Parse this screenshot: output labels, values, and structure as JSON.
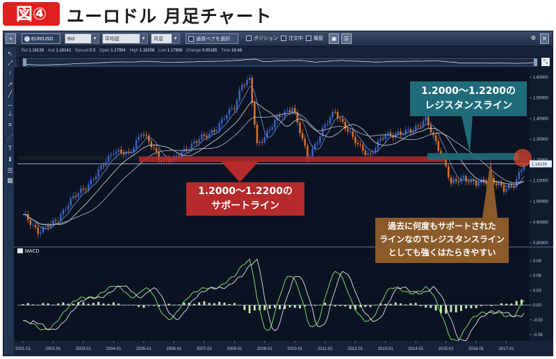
{
  "header": {
    "badge": "図④",
    "title": "ユーロドル 月足チャート"
  },
  "toolbar": {
    "pair": "EUR/USD",
    "price_type": "Bid",
    "chart_type": "平均足",
    "timeframe": "月足",
    "select_pair_button": "通貨ペアを選択",
    "position_label": "ポジション",
    "order_label": "注文中",
    "history_label": "履歴"
  },
  "infobar": {
    "bid_label": "Bid",
    "bid": "1.18139",
    "ask_label": "Ask",
    "ask": "1.18142",
    "spread_label": "Spread",
    "spread": "0.3",
    "open_label": "Open",
    "open": "1.17954",
    "high_label": "High",
    "high": "1.18258",
    "low_label": "Low",
    "low": "1.17908",
    "change_label": "Change",
    "change": "0.00185",
    "time_label": "Time",
    "time": "16:48"
  },
  "macd_label": "MACD",
  "current_price_tag": "1.18139",
  "callouts": {
    "resistance": [
      "1.2000〜1.2200の",
      "レジスタンスライン"
    ],
    "support": [
      "1.2000〜1.2200の",
      "サポートライン"
    ],
    "note": [
      "過去に何度もサポートされた",
      "ラインなので",
      "レジスタンスライン",
      "としても強くはたらきやすい"
    ]
  },
  "colors": {
    "background": "#0b1322",
    "bull": "#3a63c9",
    "bear": "#d9732f",
    "resistance_box": "#1f6b7a",
    "support_box": "#b52a2a",
    "note_box": "#8b5a2b",
    "macd_hist": "#c9efb4"
  },
  "chart_data": [
    {
      "type": "candlestick",
      "title": "",
      "x_tick_labels": [
        "2001-01",
        "2002-01",
        "2003-01",
        "2004-01",
        "2005-01",
        "2006-01",
        "2007-01",
        "2008-01",
        "2009-01",
        "2010-01",
        "2011-01",
        "2012-01",
        "2013-01",
        "2014-01",
        "2015-01",
        "2016-01",
        "2017-01"
      ],
      "y_tick_labels": [
        "1.60000",
        "1.50000",
        "1.40000",
        "1.30000",
        "1.20000",
        "1.10000",
        "1.00000",
        "0.90000",
        "0.80000"
      ],
      "ylim": [
        0.78,
        1.64
      ],
      "highlight_band": [
        1.2,
        1.22
      ],
      "monthly_close_approx": {
        "x": [
          "2001-01",
          "2001-07",
          "2002-01",
          "2002-07",
          "2003-01",
          "2003-07",
          "2004-01",
          "2004-07",
          "2004-12",
          "2005-07",
          "2006-01",
          "2006-07",
          "2007-01",
          "2007-07",
          "2008-01",
          "2008-04",
          "2008-07",
          "2008-10",
          "2009-01",
          "2009-07",
          "2009-12",
          "2010-06",
          "2010-11",
          "2011-05",
          "2011-12",
          "2012-07",
          "2013-01",
          "2013-07",
          "2014-05",
          "2014-12",
          "2015-03",
          "2015-08",
          "2016-01",
          "2016-07",
          "2016-12",
          "2017-04",
          "2017-08"
        ],
        "y": [
          0.93,
          0.86,
          0.89,
          0.99,
          1.06,
          1.14,
          1.25,
          1.22,
          1.34,
          1.21,
          1.2,
          1.27,
          1.31,
          1.37,
          1.46,
          1.57,
          1.58,
          1.27,
          1.32,
          1.41,
          1.46,
          1.21,
          1.32,
          1.44,
          1.3,
          1.22,
          1.33,
          1.32,
          1.39,
          1.21,
          1.08,
          1.12,
          1.08,
          1.11,
          1.05,
          1.09,
          1.18
        ]
      },
      "series": [
        {
          "name": "moving average (fast)",
          "color": "#7f9fe0"
        },
        {
          "name": "moving average (slow)",
          "color": "#e6e6e6"
        }
      ],
      "current_price": 1.18139
    },
    {
      "type": "bar",
      "title": "MACD",
      "y_tick_labels": [
        "0.09",
        "0.06",
        "0.03",
        "0.00",
        "-0.03",
        "-0.06"
      ],
      "ylim": [
        -0.07,
        0.1
      ],
      "histogram_approx": {
        "x": [
          "2001-01",
          "2002-01",
          "2003-01",
          "2004-01",
          "2005-01",
          "2006-01",
          "2007-01",
          "2008-01",
          "2008-07",
          "2009-01",
          "2010-01",
          "2011-01",
          "2012-01",
          "2013-01",
          "2014-01",
          "2015-01",
          "2016-01",
          "2017-01",
          "2017-08"
        ],
        "y": [
          0.002,
          0.003,
          0.005,
          0.004,
          -0.004,
          0.002,
          0.006,
          0.004,
          -0.015,
          -0.008,
          -0.006,
          0.003,
          -0.008,
          0.004,
          0.003,
          -0.018,
          -0.004,
          0.003,
          0.011
        ]
      },
      "series": [
        {
          "name": "MACD line",
          "color": "#7fd86a"
        },
        {
          "name": "signal line",
          "color": "#e6e6e6"
        }
      ]
    }
  ]
}
